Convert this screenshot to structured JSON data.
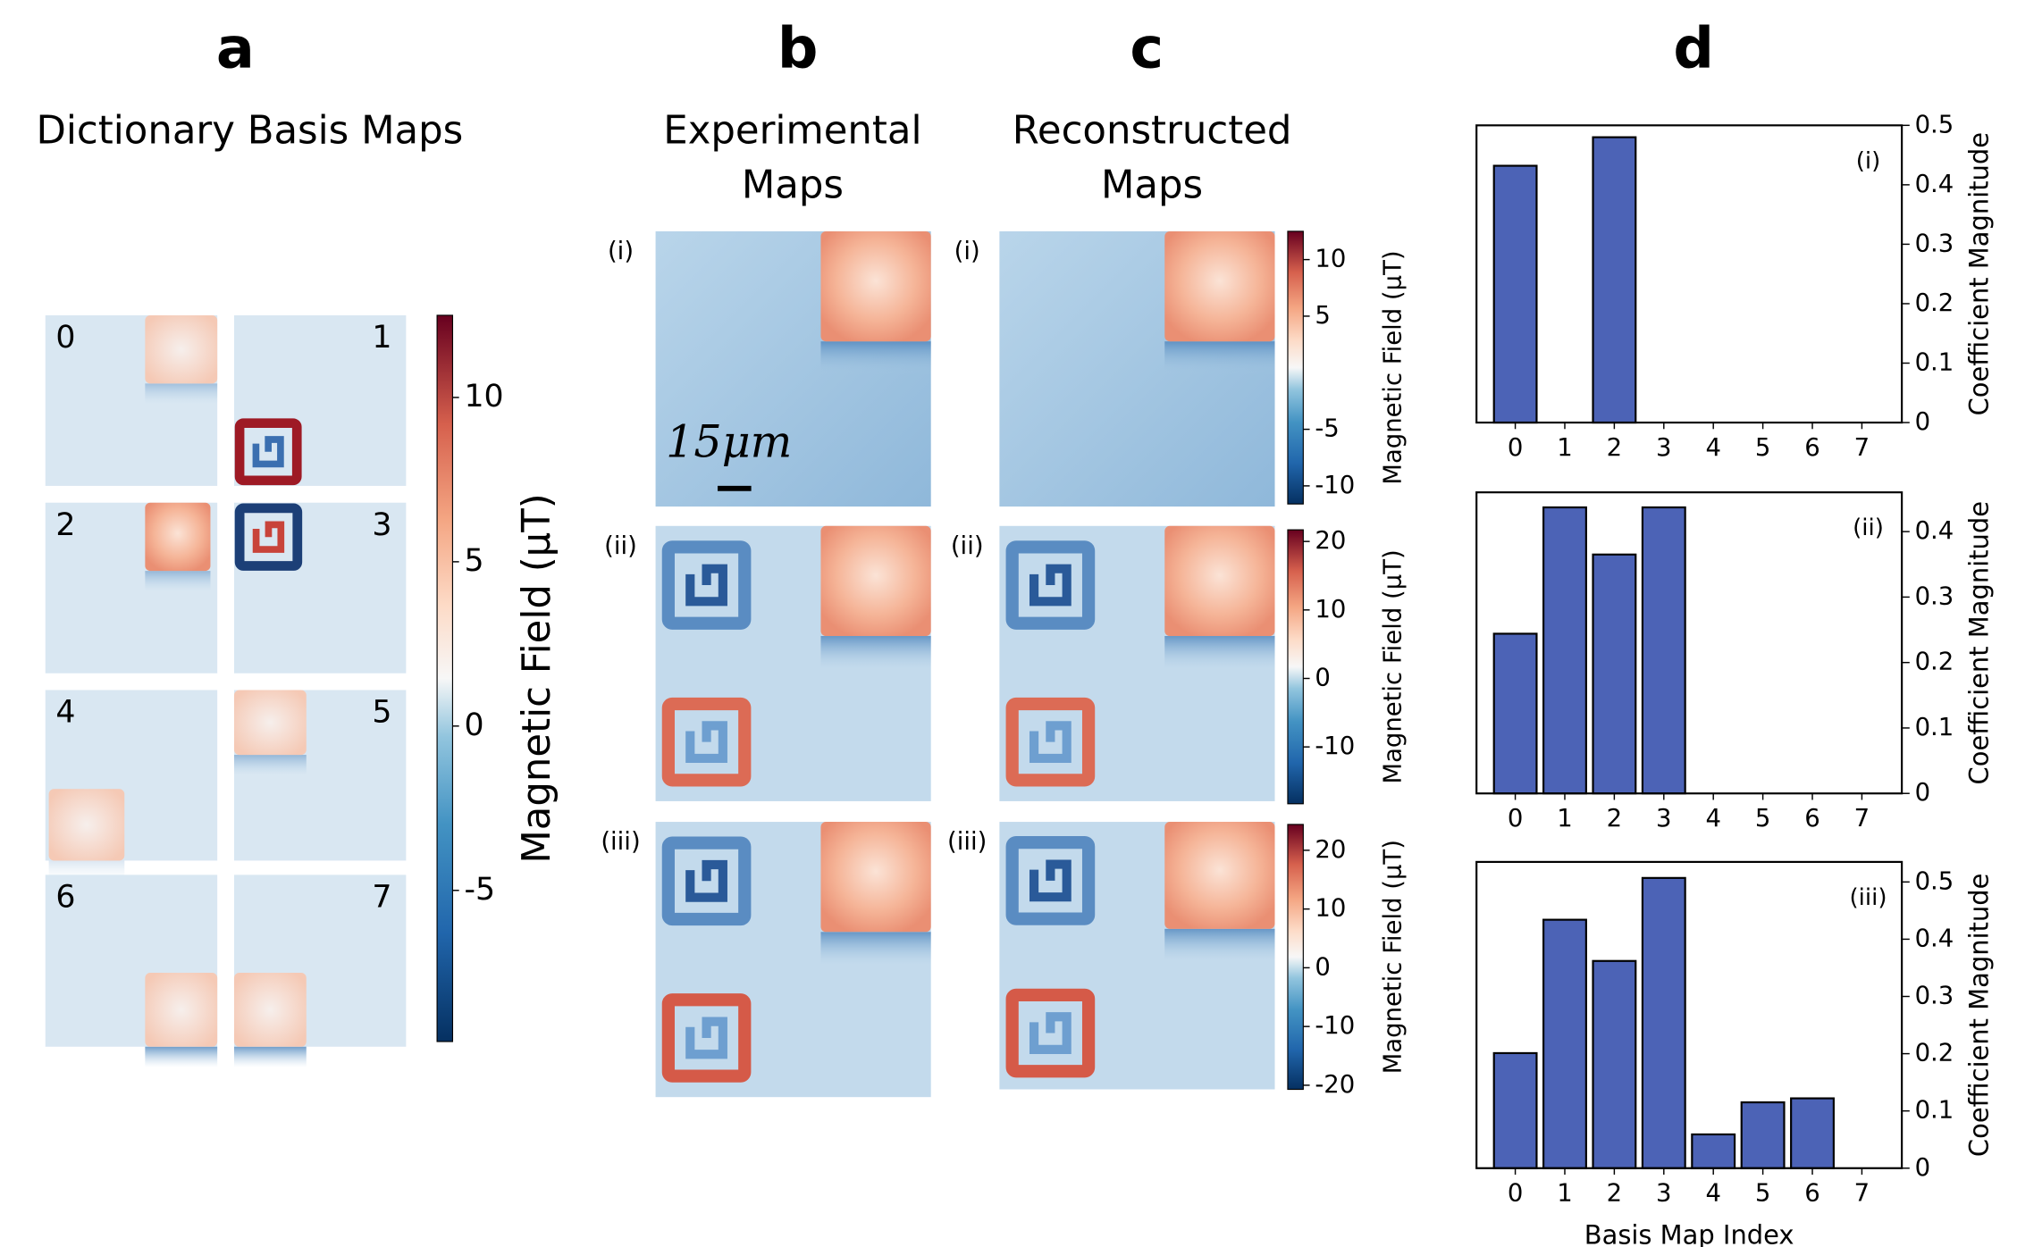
{
  "panels": [
    "a",
    "b",
    "c",
    "d"
  ],
  "basis_maps": {
    "title": "Dictionary Basis Maps",
    "indices": [
      "0",
      "1",
      "2",
      "3",
      "4",
      "5",
      "6",
      "7"
    ],
    "colorbar": {
      "label": "Magnetic Field (μT)",
      "ylim": [
        -9.6,
        12.5
      ],
      "yticks": [
        -5,
        0,
        5,
        10
      ]
    }
  },
  "experimental": {
    "title": [
      "Experimental",
      "Maps"
    ],
    "rows": [
      "(i)",
      "(ii)",
      "(iii)"
    ],
    "scale_bar": "15μm"
  },
  "reconstructed": {
    "title": [
      "Reconstructed",
      "Maps"
    ],
    "rows": [
      "(i)",
      "(ii)",
      "(iii)"
    ],
    "colorbars": [
      {
        "label": "Magnetic Field (μT)",
        "ylim": [
          -11.6,
          12.5
        ],
        "yticks": [
          -10,
          -5,
          5,
          10
        ]
      },
      {
        "label": "Magnetic Field (μT)",
        "ylim": [
          -18.3,
          21.7
        ],
        "yticks": [
          -10,
          0,
          10,
          20
        ]
      },
      {
        "label": "Magnetic Field (μT)",
        "ylim": [
          -20.7,
          24.4
        ],
        "yticks": [
          -20,
          -10,
          0,
          10,
          20
        ]
      }
    ]
  },
  "chart_data": [
    {
      "type": "bar",
      "annotation": "(i)",
      "categories": [
        "0",
        "1",
        "2",
        "3",
        "4",
        "5",
        "6",
        "7"
      ],
      "values": [
        0.432,
        0,
        0.48,
        0,
        0,
        0,
        0,
        0
      ],
      "color": "#4c63b6",
      "ylim": [
        0,
        0.5
      ],
      "yticks": [
        0,
        0.1,
        0.2,
        0.3,
        0.4,
        0.5
      ],
      "y_label": "Coefficient Magnitude"
    },
    {
      "type": "bar",
      "annotation": "(ii)",
      "categories": [
        "0",
        "1",
        "2",
        "3",
        "4",
        "5",
        "6",
        "7"
      ],
      "values": [
        0.244,
        0.437,
        0.365,
        0.437,
        0,
        0,
        0,
        0
      ],
      "color": "#4c63b6",
      "ylim": [
        0,
        0.46
      ],
      "yticks": [
        0,
        0.1,
        0.2,
        0.3,
        0.4
      ],
      "y_label": "Coefficient Magnitude"
    },
    {
      "type": "bar",
      "annotation": "(iii)",
      "categories": [
        "0",
        "1",
        "2",
        "3",
        "4",
        "5",
        "6",
        "7"
      ],
      "values": [
        0.201,
        0.434,
        0.362,
        0.507,
        0.059,
        0.115,
        0.122,
        0
      ],
      "color": "#4c63b6",
      "ylim": [
        0,
        0.535
      ],
      "yticks": [
        0,
        0.1,
        0.2,
        0.3,
        0.4,
        0.5
      ],
      "y_label": "Coefficient Magnitude",
      "x_label": "Basis Map Index"
    }
  ]
}
